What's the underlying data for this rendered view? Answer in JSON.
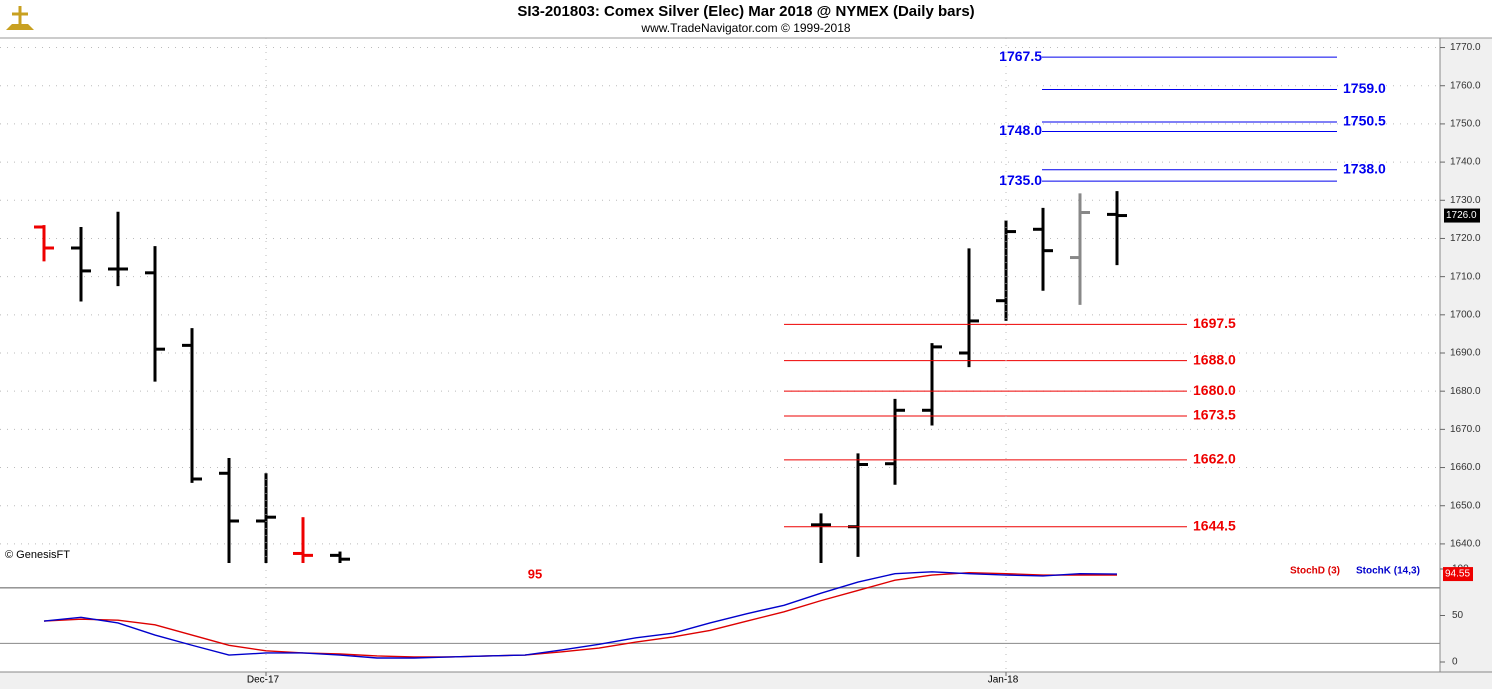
{
  "chart_data": [
    {
      "type": "ohlc",
      "title": "SI3-201803:  Comex Silver (Elec) Mar 2018 @ NYMEX  (Daily bars)",
      "subtitle": "www.TradeNavigator.com © 1999-2018",
      "credit": "© GenesisFT",
      "ylim": [
        1635,
        1772.5
      ],
      "yticks": [
        {
          "value": 1640,
          "label": "1640.0"
        },
        {
          "value": 1650,
          "label": "1650.0"
        },
        {
          "value": 1660,
          "label": "1660.0"
        },
        {
          "value": 1670,
          "label": "1670.0"
        },
        {
          "value": 1680,
          "label": "1680.0"
        },
        {
          "value": 1690,
          "label": "1690.0"
        },
        {
          "value": 1700,
          "label": "1700.0"
        },
        {
          "value": 1710,
          "label": "1710.0"
        },
        {
          "value": 1720,
          "label": "1720.0"
        },
        {
          "value": 1730,
          "label": "1730.0"
        },
        {
          "value": 1740,
          "label": "1740.0"
        },
        {
          "value": 1750,
          "label": "1750.0"
        },
        {
          "value": 1760,
          "label": "1760.0"
        },
        {
          "value": 1770,
          "label": "1770.0"
        }
      ],
      "grid": true,
      "open": [
        1723,
        1717.5,
        1712,
        1711,
        1692,
        1658.5,
        1646,
        1637.5,
        1637,
        null,
        null,
        null,
        null,
        null,
        null,
        null,
        null,
        null,
        null,
        null,
        null,
        1645,
        1644.5,
        1661,
        1675,
        1690,
        1703.7,
        1722.4,
        1715,
        1726.3
      ],
      "high": [
        1723.5,
        1723,
        1727,
        1718,
        1696.5,
        1662.5,
        1658.5,
        1647,
        1638,
        null,
        null,
        null,
        null,
        null,
        null,
        null,
        null,
        null,
        null,
        null,
        null,
        1648,
        1663.7,
        1678,
        1692.6,
        1717.4,
        1724.7,
        1728,
        1731.8,
        1732.4
      ],
      "low": [
        1714,
        1703.5,
        1707.5,
        1682.5,
        1656,
        1632,
        1632,
        1632,
        1632,
        null,
        null,
        null,
        null,
        null,
        null,
        null,
        null,
        null,
        null,
        null,
        null,
        1632,
        1636.6,
        1655.5,
        1671,
        1686.3,
        1698.4,
        1706.3,
        1702.6,
        1713
      ],
      "close": [
        1717.5,
        1711.5,
        1712,
        1691,
        1657,
        1646,
        1647,
        1637,
        1636,
        null,
        null,
        null,
        null,
        null,
        null,
        null,
        null,
        null,
        null,
        null,
        null,
        1645,
        1660.8,
        1675,
        1691.6,
        1698.4,
        1721.8,
        1716.8,
        1726.8,
        1726
      ],
      "bar_colors": [
        "#ee0000",
        "#000000",
        "#000000",
        "#000000",
        "#000000",
        "#000000",
        "#000000",
        "#ee0000",
        "#000000",
        "#000000",
        "#000000",
        "#000000",
        "#000000",
        "#000000",
        "#000000",
        "#000000",
        "#000000",
        "#000000",
        "#000000",
        "#000000",
        "#000000",
        "#000000",
        "#000000",
        "#000000",
        "#000000",
        "#000000",
        "#000000",
        "#000000",
        "#888888",
        "#000000"
      ],
      "last_price_label": "1726.0",
      "resistance_levels": {
        "color": "#0000ee",
        "levels": [
          {
            "value": 1767.5,
            "label": "1767.5",
            "side": "left"
          },
          {
            "value": 1759,
            "label": "1759.0",
            "side": "right"
          },
          {
            "value": 1750.5,
            "label": "1750.5",
            "side": "right"
          },
          {
            "value": 1748,
            "label": "1748.0",
            "side": "left"
          },
          {
            "value": 1738,
            "label": "1738.0",
            "side": "right"
          },
          {
            "value": 1735,
            "label": "1735.0",
            "side": "left"
          }
        ]
      },
      "support_levels": {
        "color": "#ee0000",
        "levels": [
          {
            "value": 1697.5,
            "label": "1697.5",
            "side": "right"
          },
          {
            "value": 1688,
            "label": "1688.0",
            "side": "right"
          },
          {
            "value": 1680,
            "label": "1680.0",
            "side": "right"
          },
          {
            "value": 1673.5,
            "label": "1673.5",
            "side": "right"
          },
          {
            "value": 1662,
            "label": "1662.0",
            "side": "right"
          },
          {
            "value": 1644.5,
            "label": "1644.5",
            "side": "right"
          }
        ]
      },
      "annotation": {
        "text": "95",
        "color": "#ee0000"
      }
    },
    {
      "type": "line",
      "categories": [
        null,
        null,
        null,
        null,
        null,
        null,
        "Dec-17",
        null,
        null,
        null,
        null,
        null,
        null,
        null,
        null,
        null,
        null,
        null,
        null,
        null,
        null,
        null,
        null,
        null,
        null,
        null,
        "Jan-18",
        null,
        null,
        null
      ],
      "series": [
        {
          "name": "StochD (3)",
          "color": "#dd0000",
          "values": [
            44,
            46,
            45,
            40,
            29,
            18,
            12,
            9.7,
            8.6,
            6.5,
            5.4,
            5.4,
            6.5,
            7.5,
            11,
            15,
            21.5,
            27,
            34,
            44,
            54,
            66,
            77,
            88,
            93.5,
            96,
            95,
            93.5,
            93.5,
            93.5
          ]
        },
        {
          "name": "StochK (14,3)",
          "color": "#0000cc",
          "values": [
            44,
            48,
            42,
            29,
            18,
            7.5,
            9.7,
            9.7,
            7.5,
            4.3,
            4.3,
            5.4,
            6.5,
            7.5,
            13,
            19,
            26,
            31,
            42,
            52,
            61,
            74,
            86,
            95,
            97,
            95,
            93.5,
            92.5,
            95,
            94.55
          ]
        }
      ],
      "ylim": [
        0,
        100
      ],
      "yticks": [
        0,
        50,
        100
      ],
      "ref_lines": [
        20,
        80
      ]
    }
  ]
}
